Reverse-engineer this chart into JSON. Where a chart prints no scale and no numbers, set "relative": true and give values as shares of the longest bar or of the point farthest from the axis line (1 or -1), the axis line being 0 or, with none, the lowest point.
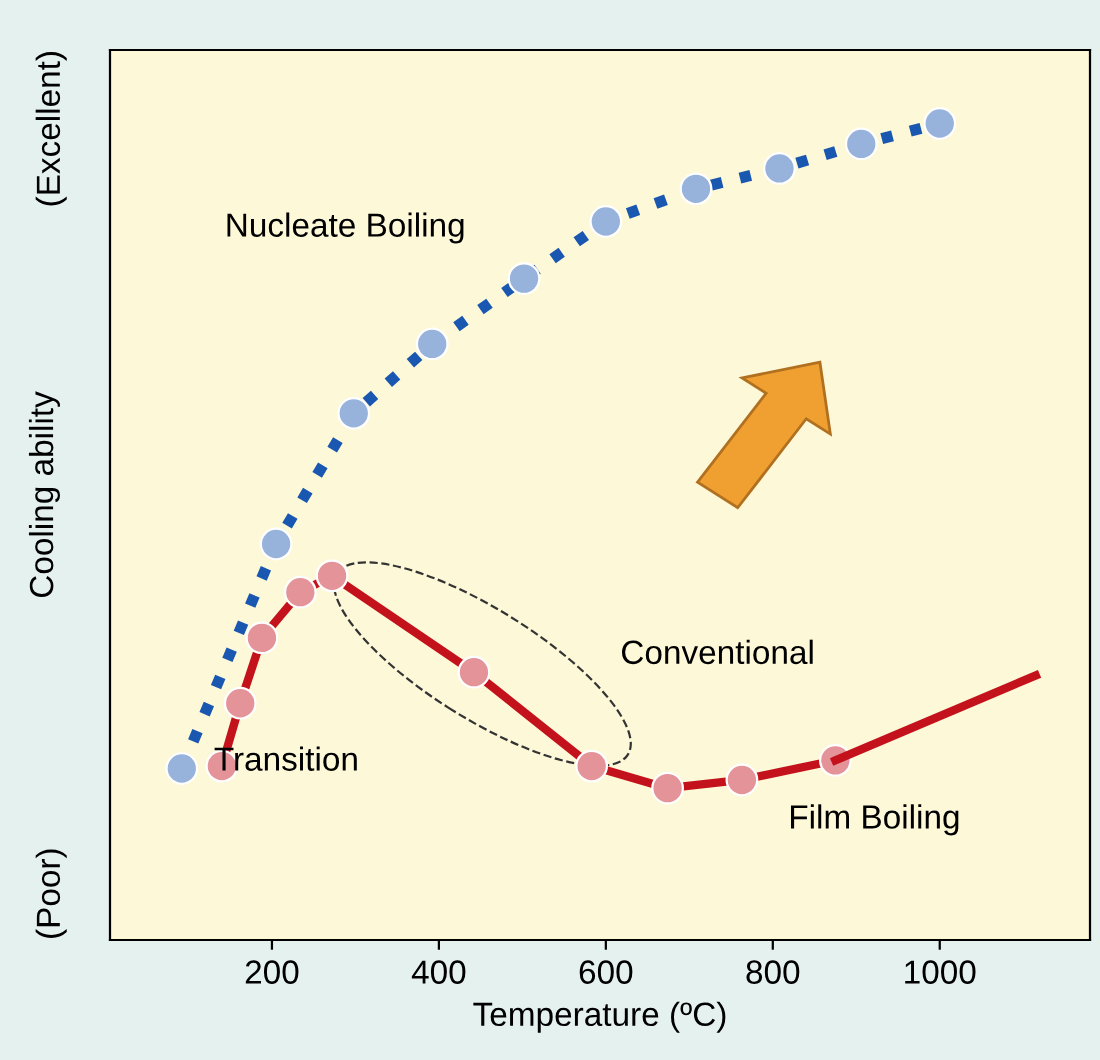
{
  "chart_data": {
    "type": "line",
    "relative": true,
    "xlabel": "Temperature (ºC)",
    "ylabel": "Cooling ability",
    "xlim": [
      6,
      1180
    ],
    "xticks": [
      200,
      400,
      600,
      800,
      1000
    ],
    "grid": false,
    "legend": false,
    "series": [
      {
        "color": "#1a57b0",
        "line_style": "dotted",
        "marker": "circle",
        "x": [
          92,
          205,
          298,
          392,
          502,
          600,
          708,
          808,
          906,
          1000
        ],
        "values": [
          0.21,
          0.485,
          0.645,
          0.73,
          0.81,
          0.88,
          0.92,
          0.945,
          0.975,
          1
        ]
      },
      {
        "color": "#c4121c",
        "line_style": "solid",
        "marker": "circle",
        "x": [
          140,
          162,
          188,
          234,
          272,
          442,
          583,
          674,
          763,
          875
        ],
        "values": [
          0.213,
          0.29,
          0.37,
          0.426,
          0.446,
          0.328,
          0.213,
          0.186,
          0.196,
          0.22
        ]
      },
      {
        "color": "#c4121c",
        "line_style": "solid",
        "marker": "none",
        "x": [
          875,
          1115
        ],
        "values": [
          0.22,
          0.324
        ]
      }
    ],
    "annotations": [
      "Nucleate Boiling",
      "Conventional",
      "Transition",
      "Film Boiling",
      "(Poor)",
      "(Excellent)"
    ]
  }
}
